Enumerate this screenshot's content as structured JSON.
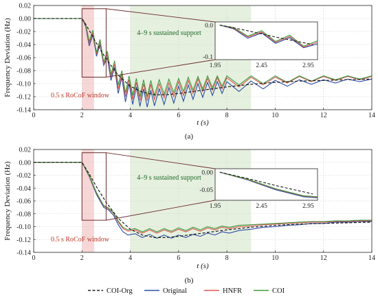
{
  "colors": {
    "coi_org": "#1a1a1a",
    "original": "#2b4aa3",
    "hnfr": "#d9534f",
    "coi": "#3e9a3e",
    "rocof_shade": "#f6d6d6",
    "sustained_shade": "#e6f0df",
    "zoom_box": "#6b2a2a",
    "annotation_green": "#1e6a28",
    "annotation_red": "#c0392b"
  },
  "legend": {
    "items": [
      {
        "label": "COI-Org",
        "key": "coi_org",
        "dash": true
      },
      {
        "label": "Original",
        "key": "original",
        "dash": false
      },
      {
        "label": "HNFR",
        "key": "hnfr",
        "dash": false
      },
      {
        "label": "COI",
        "key": "coi",
        "dash": false
      }
    ]
  },
  "chart_data": [
    {
      "type": "line",
      "panel_label": "(a)",
      "xlabel": "t (s)",
      "ylabel": "Frequency Deviation (Hz)",
      "xlim": [
        0,
        14
      ],
      "ylim": [
        -0.14,
        0.02
      ],
      "xticks": [
        "0",
        "2",
        "4",
        "6",
        "8",
        "10",
        "12",
        "14"
      ],
      "yticks": [
        "0.02",
        "0.00",
        "-0.02",
        "-0.04",
        "-0.06",
        "-0.08",
        "-0.10",
        "-0.12",
        "-0.14"
      ],
      "annotations": {
        "rocof": "0.5 s RoCoF window",
        "sustained": "4–9 s sustained support"
      },
      "regions": {
        "rocof": [
          2.0,
          2.5
        ],
        "sustained": [
          4.0,
          9.0
        ]
      },
      "zoom": {
        "source_x": [
          2.0,
          3.0
        ],
        "source_y": [
          -0.09,
          0.015
        ],
        "xlim": [
          1.95,
          3.05
        ],
        "ylim": [
          -0.11,
          0.01
        ],
        "xticks": [
          "1.95",
          "2.45",
          "2.95"
        ],
        "yticks": [
          "0.0",
          "-0.1"
        ]
      },
      "series": [
        {
          "name": "COI-Org",
          "key": "coi_org",
          "x": [
            0,
            2.0,
            2.3,
            2.6,
            3.0,
            3.5,
            4.0,
            4.5,
            5.0,
            5.5,
            6.0,
            7.0,
            8.0,
            9.0,
            10.0,
            11.0,
            12.0,
            13.0,
            14.0
          ],
          "y": [
            0.0,
            0.0,
            -0.018,
            -0.038,
            -0.062,
            -0.087,
            -0.104,
            -0.113,
            -0.117,
            -0.117,
            -0.115,
            -0.11,
            -0.105,
            -0.101,
            -0.098,
            -0.096,
            -0.095,
            -0.094,
            -0.093
          ]
        },
        {
          "name": "Original",
          "key": "original",
          "x": [
            0,
            2.0,
            2.15,
            2.3,
            2.45,
            2.6,
            2.75,
            2.9,
            3.05,
            3.2,
            3.35,
            3.5,
            3.65,
            3.8,
            3.95,
            4.1,
            4.25,
            4.4,
            4.55,
            4.7,
            4.85,
            5.0,
            5.2,
            5.4,
            5.6,
            5.8,
            6.0,
            6.2,
            6.4,
            6.6,
            6.8,
            7.0,
            7.2,
            7.4,
            7.6,
            7.8,
            8.0,
            8.5,
            9.0,
            9.5,
            10.0,
            10.5,
            11.0,
            11.5,
            12.0,
            12.5,
            13.0,
            13.5,
            14.0
          ],
          "y": [
            0.0,
            0.0,
            -0.012,
            -0.042,
            -0.025,
            -0.058,
            -0.04,
            -0.072,
            -0.06,
            -0.095,
            -0.075,
            -0.115,
            -0.09,
            -0.128,
            -0.1,
            -0.132,
            -0.105,
            -0.135,
            -0.108,
            -0.136,
            -0.11,
            -0.134,
            -0.108,
            -0.132,
            -0.106,
            -0.13,
            -0.104,
            -0.127,
            -0.102,
            -0.124,
            -0.1,
            -0.121,
            -0.098,
            -0.118,
            -0.097,
            -0.115,
            -0.097,
            -0.112,
            -0.096,
            -0.108,
            -0.095,
            -0.104,
            -0.094,
            -0.101,
            -0.094,
            -0.099,
            -0.093,
            -0.097,
            -0.093
          ]
        },
        {
          "name": "HNFR",
          "key": "hnfr",
          "x": [
            0,
            2.0,
            2.15,
            2.3,
            2.45,
            2.6,
            2.75,
            2.9,
            3.05,
            3.2,
            3.35,
            3.5,
            3.65,
            3.8,
            3.95,
            4.1,
            4.25,
            4.4,
            4.55,
            4.7,
            4.85,
            5.0,
            5.2,
            5.4,
            5.6,
            5.8,
            6.0,
            6.2,
            6.4,
            6.6,
            6.8,
            7.0,
            7.2,
            7.4,
            7.6,
            7.8,
            8.0,
            8.5,
            9.0,
            9.5,
            10.0,
            10.5,
            11.0,
            11.5,
            12.0,
            12.5,
            13.0,
            13.5,
            14.0
          ],
          "y": [
            0.0,
            0.0,
            -0.01,
            -0.038,
            -0.022,
            -0.055,
            -0.036,
            -0.07,
            -0.055,
            -0.09,
            -0.07,
            -0.108,
            -0.085,
            -0.12,
            -0.094,
            -0.124,
            -0.098,
            -0.126,
            -0.1,
            -0.126,
            -0.101,
            -0.124,
            -0.1,
            -0.122,
            -0.099,
            -0.12,
            -0.097,
            -0.118,
            -0.095,
            -0.115,
            -0.093,
            -0.112,
            -0.092,
            -0.11,
            -0.091,
            -0.108,
            -0.091,
            -0.105,
            -0.09,
            -0.102,
            -0.09,
            -0.099,
            -0.089,
            -0.097,
            -0.089,
            -0.095,
            -0.089,
            -0.094,
            -0.089
          ]
        },
        {
          "name": "COI",
          "key": "coi",
          "x": [
            0,
            2.0,
            2.15,
            2.3,
            2.45,
            2.6,
            2.75,
            2.9,
            3.05,
            3.2,
            3.35,
            3.5,
            3.65,
            3.8,
            3.95,
            4.1,
            4.25,
            4.4,
            4.55,
            4.7,
            4.85,
            5.0,
            5.2,
            5.4,
            5.6,
            5.8,
            6.0,
            6.2,
            6.4,
            6.6,
            6.8,
            7.0,
            7.2,
            7.4,
            7.6,
            7.8,
            8.0,
            8.5,
            9.0,
            9.5,
            10.0,
            10.5,
            11.0,
            11.5,
            12.0,
            12.5,
            13.0,
            13.5,
            14.0
          ],
          "y": [
            0.0,
            0.0,
            -0.008,
            -0.035,
            -0.018,
            -0.052,
            -0.032,
            -0.067,
            -0.05,
            -0.086,
            -0.065,
            -0.102,
            -0.08,
            -0.114,
            -0.088,
            -0.118,
            -0.092,
            -0.12,
            -0.094,
            -0.12,
            -0.095,
            -0.118,
            -0.094,
            -0.116,
            -0.093,
            -0.114,
            -0.092,
            -0.112,
            -0.09,
            -0.11,
            -0.089,
            -0.108,
            -0.088,
            -0.106,
            -0.088,
            -0.104,
            -0.088,
            -0.102,
            -0.088,
            -0.1,
            -0.088,
            -0.098,
            -0.088,
            -0.096,
            -0.088,
            -0.094,
            -0.088,
            -0.093,
            -0.088
          ]
        }
      ]
    },
    {
      "type": "line",
      "panel_label": "(b)",
      "xlabel": "t (s)",
      "ylabel": "Frequency Deviation (Hz)",
      "xlim": [
        0,
        14
      ],
      "ylim": [
        -0.14,
        0.02
      ],
      "xticks": [
        "0",
        "2",
        "4",
        "6",
        "8",
        "10",
        "12",
        "14"
      ],
      "yticks": [
        "0.02",
        "0.00",
        "-0.02",
        "-0.04",
        "-0.06",
        "-0.08",
        "-0.10",
        "-0.12",
        "-0.14"
      ],
      "annotations": {
        "rocof": "0.5 s RoCoF window",
        "sustained": "4–9 s sustained support"
      },
      "regions": {
        "rocof": [
          2.0,
          2.5
        ],
        "sustained": [
          4.0,
          9.0
        ]
      },
      "zoom": {
        "source_x": [
          2.0,
          3.0
        ],
        "source_y": [
          -0.09,
          0.015
        ],
        "xlim": [
          1.95,
          3.05
        ],
        "ylim": [
          -0.08,
          0.01
        ],
        "xticks": [
          "1.95",
          "2.45",
          "2.95"
        ],
        "yticks": [
          "0.00",
          "-0.05"
        ]
      },
      "series": [
        {
          "name": "COI-Org",
          "key": "coi_org",
          "x": [
            0,
            2.0,
            2.3,
            2.6,
            3.0,
            3.5,
            4.0,
            4.5,
            5.0,
            5.5,
            6.0,
            7.0,
            8.0,
            9.0,
            10.0,
            11.0,
            12.0,
            13.0,
            14.0
          ],
          "y": [
            0.0,
            0.0,
            -0.018,
            -0.038,
            -0.062,
            -0.087,
            -0.104,
            -0.113,
            -0.117,
            -0.117,
            -0.115,
            -0.11,
            -0.105,
            -0.101,
            -0.098,
            -0.096,
            -0.095,
            -0.094,
            -0.093
          ]
        },
        {
          "name": "Original",
          "key": "original",
          "x": [
            0,
            2.0,
            2.3,
            2.6,
            2.9,
            3.1,
            3.3,
            3.5,
            3.7,
            3.9,
            4.2,
            4.5,
            4.8,
            5.1,
            5.4,
            5.7,
            6.0,
            6.3,
            6.6,
            6.9,
            7.2,
            7.5,
            7.8,
            8.1,
            8.5,
            9.0,
            9.5,
            10.0,
            10.5,
            11.0,
            11.5,
            12.0,
            12.5,
            13.0,
            13.5,
            14.0
          ],
          "y": [
            0.0,
            0.0,
            -0.022,
            -0.05,
            -0.07,
            -0.074,
            -0.082,
            -0.097,
            -0.108,
            -0.113,
            -0.111,
            -0.117,
            -0.112,
            -0.118,
            -0.113,
            -0.118,
            -0.113,
            -0.117,
            -0.112,
            -0.115,
            -0.11,
            -0.113,
            -0.108,
            -0.11,
            -0.106,
            -0.104,
            -0.101,
            -0.1,
            -0.098,
            -0.097,
            -0.095,
            -0.095,
            -0.093,
            -0.093,
            -0.092,
            -0.092
          ]
        },
        {
          "name": "HNFR",
          "key": "hnfr",
          "x": [
            0,
            2.0,
            2.3,
            2.6,
            2.9,
            3.1,
            3.3,
            3.5,
            3.7,
            3.9,
            4.2,
            4.5,
            4.8,
            5.1,
            5.4,
            5.7,
            6.0,
            6.3,
            6.6,
            6.9,
            7.2,
            7.5,
            7.8,
            8.1,
            8.5,
            9.0,
            9.5,
            10.0,
            10.5,
            11.0,
            11.5,
            12.0,
            12.5,
            13.0,
            13.5,
            14.0
          ],
          "y": [
            0.0,
            0.0,
            -0.021,
            -0.048,
            -0.068,
            -0.072,
            -0.079,
            -0.093,
            -0.103,
            -0.107,
            -0.105,
            -0.11,
            -0.105,
            -0.11,
            -0.105,
            -0.109,
            -0.104,
            -0.108,
            -0.103,
            -0.107,
            -0.102,
            -0.105,
            -0.101,
            -0.103,
            -0.1,
            -0.099,
            -0.097,
            -0.096,
            -0.095,
            -0.094,
            -0.093,
            -0.093,
            -0.092,
            -0.092,
            -0.091,
            -0.091
          ]
        },
        {
          "name": "COI",
          "key": "coi",
          "x": [
            0,
            2.0,
            2.3,
            2.6,
            2.9,
            3.1,
            3.3,
            3.5,
            3.7,
            3.9,
            4.2,
            4.5,
            4.8,
            5.1,
            5.4,
            5.7,
            6.0,
            6.3,
            6.6,
            6.9,
            7.2,
            7.5,
            7.8,
            8.1,
            8.5,
            9.0,
            9.5,
            10.0,
            10.5,
            11.0,
            11.5,
            12.0,
            12.5,
            13.0,
            13.5,
            14.0
          ],
          "y": [
            0.0,
            0.0,
            -0.02,
            -0.047,
            -0.067,
            -0.071,
            -0.078,
            -0.091,
            -0.101,
            -0.105,
            -0.103,
            -0.108,
            -0.103,
            -0.108,
            -0.103,
            -0.107,
            -0.102,
            -0.106,
            -0.101,
            -0.105,
            -0.1,
            -0.103,
            -0.099,
            -0.101,
            -0.098,
            -0.097,
            -0.096,
            -0.095,
            -0.094,
            -0.093,
            -0.092,
            -0.092,
            -0.091,
            -0.091,
            -0.09,
            -0.09
          ]
        }
      ]
    }
  ]
}
